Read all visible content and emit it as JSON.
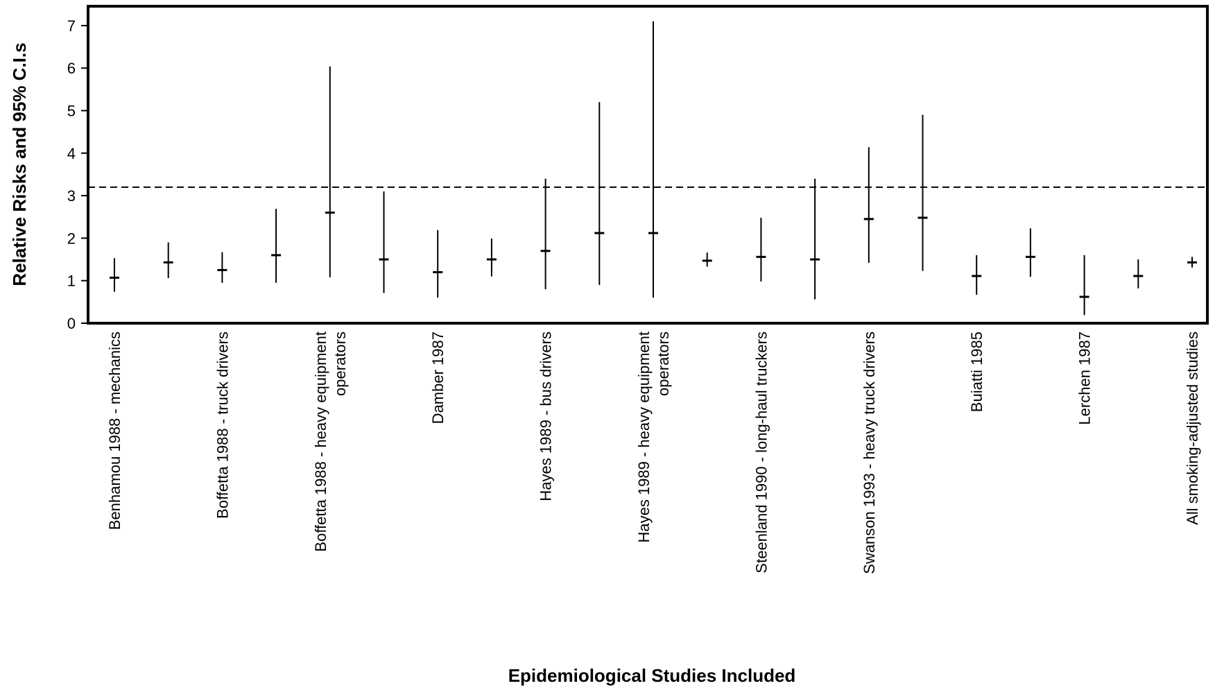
{
  "chart_data": {
    "type": "errorbar",
    "title": "",
    "xlabel": "Epidemiological Studies Included",
    "ylabel": "Relative Risks and 95% C.I.s",
    "ylim": [
      0,
      7.5
    ],
    "yticks": [
      0,
      1,
      2,
      3,
      4,
      5,
      6,
      7
    ],
    "grid": false,
    "legend": "none",
    "reference_line": {
      "y": 3.2,
      "style": "dashed"
    },
    "category_labels": [
      [
        "Benhamou 1988 - mechanics"
      ],
      [],
      [
        "Boffetta 1988 - truck drivers"
      ],
      [],
      [
        "Boffetta 1988 - heavy equipment",
        "operators"
      ],
      [],
      [
        "Damber 1987"
      ],
      [],
      [
        "Hayes 1989 - bus drivers"
      ],
      [],
      [
        "Hayes 1989 - heavy equipment",
        "operators"
      ],
      [],
      [
        "Steenland 1990 - long-haul truckers"
      ],
      [],
      [
        "Swanson 1993 - heavy truck drivers"
      ],
      [],
      [
        "Buiatti 1985"
      ],
      [],
      [
        "Lerchen 1987"
      ],
      [],
      [
        "All smoking-adjusted studies"
      ]
    ],
    "series": [
      {
        "estimate": [
          1.07,
          1.43,
          1.25,
          1.6,
          2.6,
          1.5,
          1.2,
          1.5,
          1.7,
          2.12,
          2.12,
          1.47,
          1.56,
          1.5,
          2.45,
          2.48,
          1.11,
          1.56,
          0.62,
          1.11,
          1.43
        ],
        "lower": [
          0.74,
          1.06,
          0.95,
          0.95,
          1.08,
          0.71,
          0.6,
          1.1,
          0.8,
          0.9,
          0.6,
          1.33,
          0.98,
          0.56,
          1.42,
          1.23,
          0.67,
          1.09,
          0.19,
          0.82,
          1.31
        ],
        "upper": [
          1.53,
          1.9,
          1.67,
          2.69,
          6.04,
          3.1,
          2.19,
          1.99,
          3.4,
          5.2,
          7.1,
          1.66,
          2.48,
          3.4,
          4.14,
          4.9,
          1.6,
          2.23,
          1.6,
          1.5,
          1.56
        ]
      }
    ],
    "colors": {
      "marks": "#000000",
      "background": "#ffffff"
    }
  }
}
